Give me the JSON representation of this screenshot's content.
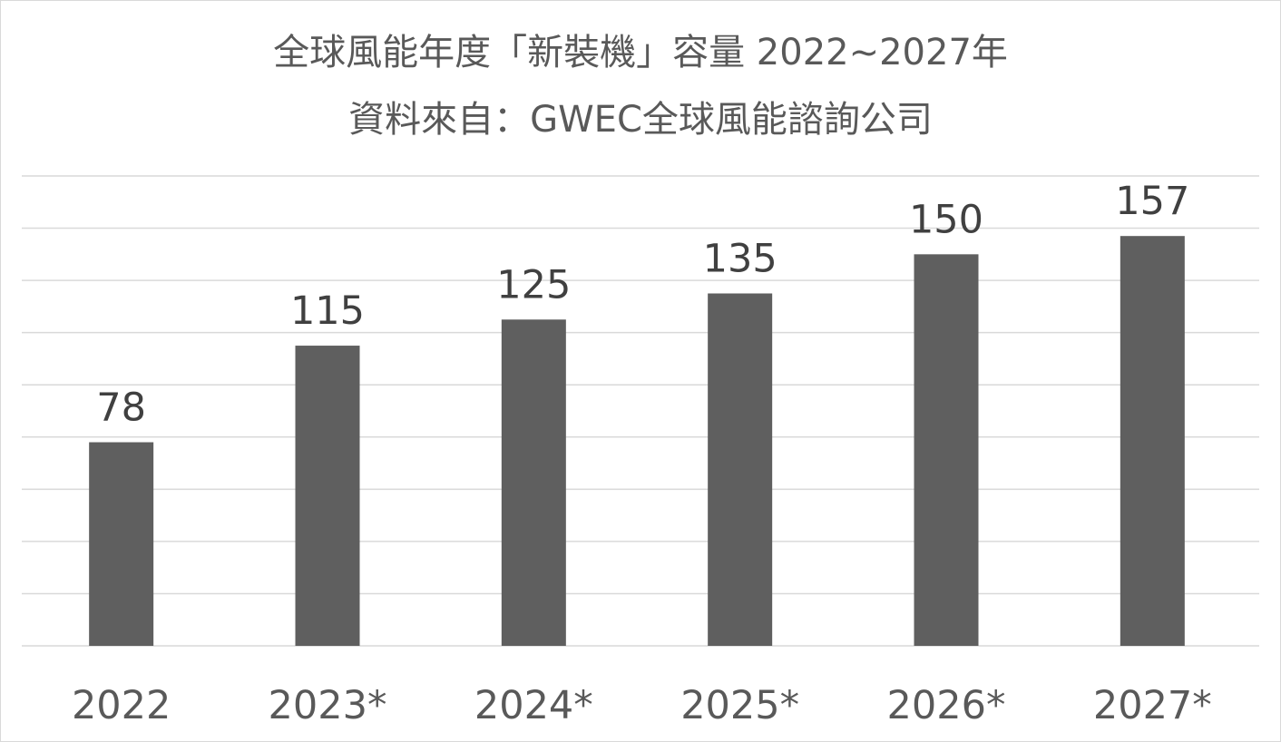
{
  "chart_data": {
    "type": "bar",
    "title": "全球風能年度「新裝機」容量 2022~2027年",
    "subtitle": "資料來自：GWEC全球風能諮詢公司",
    "xlabel": "",
    "ylabel": "",
    "categories": [
      "2022",
      "2023*",
      "2024*",
      "2025*",
      "2026*",
      "2027*"
    ],
    "values": [
      78,
      115,
      125,
      135,
      150,
      157
    ],
    "ylim": [
      0,
      180
    ],
    "grid": true,
    "legend": "none",
    "bar_color": "#5f5f5f",
    "data_labels": [
      "78",
      "115",
      "125",
      "135",
      "150",
      "157"
    ]
  }
}
